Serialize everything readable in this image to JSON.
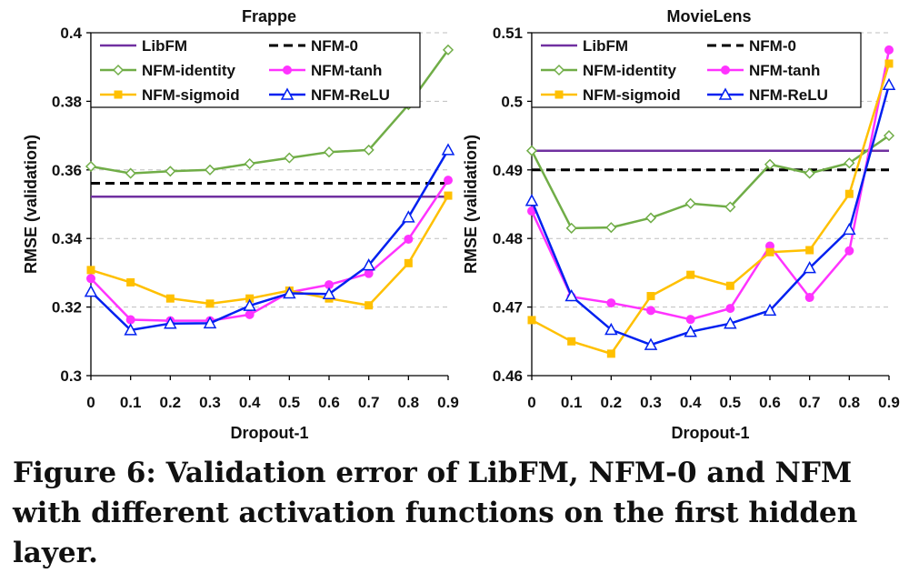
{
  "caption": "Figure 6: Validation error of LibFM, NFM-0 and NFM with different activation functions on the first hidden layer.",
  "colors": {
    "LibFM": "#7030a0",
    "NFM-0": "#000000",
    "NFM-identity": "#70ad47",
    "NFM-tanh": "#ff33ff",
    "NFM-sigmoid": "#ffc000",
    "NFM-ReLU": "#0020f0"
  },
  "chart_data": [
    {
      "type": "line",
      "title": "Frappe",
      "xlabel": "Dropout-1",
      "ylabel": "RMSE (validation)",
      "x": [
        0,
        0.1,
        0.2,
        0.3,
        0.4,
        0.5,
        0.6,
        0.7,
        0.8,
        0.9
      ],
      "x_tick_labels": [
        "0",
        "0.1",
        "0.2",
        "0.3",
        "0.4",
        "0.5",
        "0.6",
        "0.7",
        "0.8",
        "0.9"
      ],
      "ylim": [
        0.3,
        0.4
      ],
      "y_ticks": [
        0.3,
        0.32,
        0.34,
        0.36,
        0.38,
        0.4
      ],
      "y_tick_labels": [
        "0.3",
        "0.32",
        "0.34",
        "0.36",
        "0.38",
        "0.4"
      ],
      "grid": "horizontal dashed",
      "legend_position": "top",
      "series": [
        {
          "name": "LibFM",
          "style": "solid",
          "marker": "none",
          "values": [
            0.3522,
            0.3522,
            0.3522,
            0.3522,
            0.3522,
            0.3522,
            0.3522,
            0.3522,
            0.3522,
            0.3522
          ]
        },
        {
          "name": "NFM-0",
          "style": "dashed",
          "marker": "none",
          "values": [
            0.3561,
            0.3561,
            0.3561,
            0.3561,
            0.3561,
            0.3561,
            0.3561,
            0.3561,
            0.3561,
            0.3561
          ]
        },
        {
          "name": "NFM-identity",
          "style": "solid",
          "marker": "diamond",
          "values": [
            0.361,
            0.359,
            0.3596,
            0.36,
            0.3618,
            0.3635,
            0.3652,
            0.3658,
            0.379,
            0.395
          ]
        },
        {
          "name": "NFM-tanh",
          "style": "solid",
          "marker": "circle",
          "values": [
            0.3283,
            0.3163,
            0.316,
            0.316,
            0.3178,
            0.3243,
            0.3265,
            0.3298,
            0.3398,
            0.357
          ]
        },
        {
          "name": "NFM-sigmoid",
          "style": "solid",
          "marker": "square",
          "values": [
            0.3308,
            0.3272,
            0.3225,
            0.321,
            0.3225,
            0.3248,
            0.3225,
            0.3205,
            0.3328,
            0.3525
          ]
        },
        {
          "name": "NFM-ReLU",
          "style": "solid",
          "marker": "triangle",
          "values": [
            0.3245,
            0.3133,
            0.3152,
            0.3153,
            0.3204,
            0.324,
            0.3238,
            0.3322,
            0.3462,
            0.3658
          ]
        }
      ]
    },
    {
      "type": "line",
      "title": "MovieLens",
      "xlabel": "Dropout-1",
      "ylabel": "RMSE (validation)",
      "x": [
        0,
        0.1,
        0.2,
        0.3,
        0.4,
        0.5,
        0.6,
        0.7,
        0.8,
        0.9
      ],
      "x_tick_labels": [
        "0",
        "0.1",
        "0.2",
        "0.3",
        "0.4",
        "0.5",
        "0.6",
        "0.7",
        "0.8",
        "0.9"
      ],
      "ylim": [
        0.46,
        0.51
      ],
      "y_ticks": [
        0.46,
        0.47,
        0.48,
        0.49,
        0.5,
        0.51
      ],
      "y_tick_labels": [
        "0.46",
        "0.47",
        "0.48",
        "0.49",
        "0.5",
        "0.51"
      ],
      "grid": "horizontal dashed",
      "legend_position": "top",
      "series": [
        {
          "name": "LibFM",
          "style": "solid",
          "marker": "none",
          "values": [
            0.4928,
            0.4928,
            0.4928,
            0.4928,
            0.4928,
            0.4928,
            0.4928,
            0.4928,
            0.4928,
            0.4928
          ]
        },
        {
          "name": "NFM-0",
          "style": "dashed",
          "marker": "none",
          "values": [
            0.49,
            0.49,
            0.49,
            0.49,
            0.49,
            0.49,
            0.49,
            0.49,
            0.49,
            0.49
          ]
        },
        {
          "name": "NFM-identity",
          "style": "solid",
          "marker": "diamond",
          "values": [
            0.4928,
            0.4815,
            0.4816,
            0.483,
            0.4851,
            0.4846,
            0.4908,
            0.4895,
            0.491,
            0.495
          ]
        },
        {
          "name": "NFM-tanh",
          "style": "solid",
          "marker": "circle",
          "values": [
            0.484,
            0.4715,
            0.4706,
            0.4695,
            0.4682,
            0.4698,
            0.4789,
            0.4714,
            0.4782,
            0.5075
          ]
        },
        {
          "name": "NFM-sigmoid",
          "style": "solid",
          "marker": "square",
          "values": [
            0.4681,
            0.465,
            0.4632,
            0.4716,
            0.4747,
            0.4731,
            0.478,
            0.4783,
            0.4865,
            0.5055
          ]
        },
        {
          "name": "NFM-ReLU",
          "style": "solid",
          "marker": "triangle",
          "values": [
            0.4855,
            0.4716,
            0.4667,
            0.4645,
            0.4664,
            0.4676,
            0.4695,
            0.4757,
            0.4813,
            0.5024
          ]
        }
      ]
    }
  ]
}
